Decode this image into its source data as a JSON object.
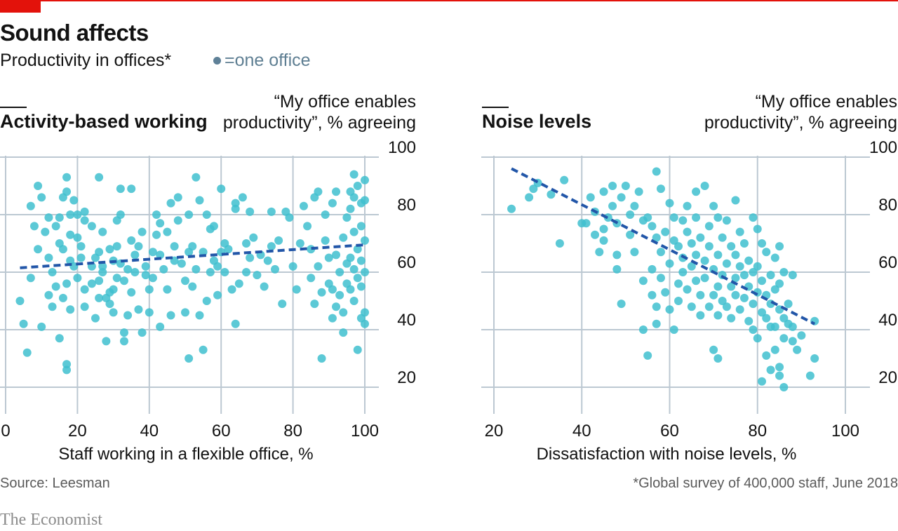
{
  "header": {
    "title": "Sound affects",
    "subtitle": "Productivity in offices*",
    "legend_label": "=one office"
  },
  "footer": {
    "source": "Source: Leesman",
    "footnote": "*Global survey of 400,000 staff, June 2018",
    "brand": "The Economist"
  },
  "colors": {
    "accent_red": "#e3120b",
    "dot": "#3fbfcf",
    "trend": "#2256a8",
    "grid": "#bcc8d2"
  },
  "chart_data": [
    {
      "type": "scatter",
      "title": "Activity-based working",
      "ylabel": "“My office enables productivity”, % agreeing",
      "xlabel": "Staff working in a flexible office, %",
      "xlim": [
        0,
        100
      ],
      "ylim": [
        20,
        100
      ],
      "xticks": [
        0,
        20,
        40,
        60,
        80,
        100
      ],
      "yticks": [
        20,
        40,
        60,
        80,
        100
      ],
      "grid": true,
      "trend": [
        [
          4,
          61.5
        ],
        [
          100,
          69.5
        ]
      ],
      "points": [
        [
          4,
          50
        ],
        [
          5,
          42
        ],
        [
          6,
          32
        ],
        [
          7,
          58
        ],
        [
          7,
          83
        ],
        [
          8,
          76
        ],
        [
          9,
          90
        ],
        [
          9,
          68
        ],
        [
          10,
          86
        ],
        [
          10,
          41
        ],
        [
          11,
          74
        ],
        [
          12,
          79
        ],
        [
          12,
          65
        ],
        [
          12,
          52
        ],
        [
          13,
          48
        ],
        [
          13,
          60
        ],
        [
          14,
          76
        ],
        [
          14,
          55
        ],
        [
          15,
          37
        ],
        [
          15,
          79
        ],
        [
          15,
          70
        ],
        [
          16,
          68
        ],
        [
          16,
          86
        ],
        [
          16,
          51
        ],
        [
          17,
          56
        ],
        [
          17,
          93
        ],
        [
          17,
          88
        ],
        [
          17,
          28
        ],
        [
          17,
          26
        ],
        [
          18,
          73
        ],
        [
          18,
          64
        ],
        [
          18,
          80
        ],
        [
          18,
          47
        ],
        [
          19,
          85
        ],
        [
          19,
          62
        ],
        [
          20,
          80
        ],
        [
          20,
          72
        ],
        [
          20,
          58
        ],
        [
          21,
          69
        ],
        [
          21,
          65
        ],
        [
          22,
          81
        ],
        [
          22,
          78
        ],
        [
          22,
          54
        ],
        [
          22,
          48
        ],
        [
          24,
          62
        ],
        [
          24,
          76
        ],
        [
          24,
          56
        ],
        [
          25,
          65
        ],
        [
          25,
          44
        ],
        [
          26,
          67
        ],
        [
          26,
          57
        ],
        [
          26,
          51
        ],
        [
          26,
          93
        ],
        [
          27,
          74
        ],
        [
          27,
          62
        ],
        [
          27,
          60
        ],
        [
          28,
          51
        ],
        [
          28,
          36
        ],
        [
          29,
          68
        ],
        [
          29,
          53
        ],
        [
          29,
          49
        ],
        [
          30,
          64
        ],
        [
          30,
          54
        ],
        [
          30,
          46
        ],
        [
          31,
          78
        ],
        [
          31,
          69
        ],
        [
          31,
          58
        ],
        [
          32,
          89
        ],
        [
          32,
          80
        ],
        [
          32,
          63
        ],
        [
          33,
          57
        ],
        [
          33,
          36
        ],
        [
          33,
          39
        ],
        [
          34,
          45
        ],
        [
          34,
          61
        ],
        [
          35,
          71
        ],
        [
          35,
          89
        ],
        [
          35,
          53
        ],
        [
          36,
          66
        ],
        [
          36,
          60
        ],
        [
          37,
          47
        ],
        [
          37,
          69
        ],
        [
          38,
          74
        ],
        [
          38,
          39
        ],
        [
          39,
          59
        ],
        [
          39,
          62
        ],
        [
          40,
          54
        ],
        [
          40,
          46
        ],
        [
          41,
          67
        ],
        [
          41,
          58
        ],
        [
          42,
          73
        ],
        [
          42,
          80
        ],
        [
          43,
          77
        ],
        [
          43,
          66
        ],
        [
          43,
          41
        ],
        [
          44,
          61
        ],
        [
          45,
          54
        ],
        [
          45,
          74
        ],
        [
          46,
          84
        ],
        [
          46,
          45
        ],
        [
          47,
          64
        ],
        [
          47,
          69
        ],
        [
          48,
          78
        ],
        [
          48,
          86
        ],
        [
          49,
          63
        ],
        [
          50,
          57
        ],
        [
          50,
          46
        ],
        [
          51,
          67
        ],
        [
          51,
          80
        ],
        [
          51,
          30
        ],
        [
          52,
          55
        ],
        [
          52,
          69
        ],
        [
          53,
          93
        ],
        [
          53,
          61
        ],
        [
          54,
          45
        ],
        [
          54,
          85
        ],
        [
          55,
          67
        ],
        [
          55,
          33
        ],
        [
          56,
          50
        ],
        [
          56,
          80
        ],
        [
          57,
          60
        ],
        [
          57,
          75
        ],
        [
          58,
          76
        ],
        [
          58,
          64
        ],
        [
          59,
          52
        ],
        [
          59,
          62
        ],
        [
          60,
          67
        ],
        [
          60,
          89
        ],
        [
          61,
          60
        ],
        [
          61,
          70
        ],
        [
          62,
          68
        ],
        [
          63,
          54
        ],
        [
          64,
          82
        ],
        [
          64,
          84
        ],
        [
          64,
          42
        ],
        [
          65,
          56
        ],
        [
          66,
          86
        ],
        [
          67,
          60
        ],
        [
          67,
          70
        ],
        [
          68,
          81
        ],
        [
          68,
          65
        ],
        [
          69,
          72
        ],
        [
          70,
          59
        ],
        [
          71,
          66
        ],
        [
          72,
          55
        ],
        [
          73,
          64
        ],
        [
          74,
          81
        ],
        [
          74,
          69
        ],
        [
          75,
          61
        ],
        [
          76,
          71
        ],
        [
          77,
          49
        ],
        [
          78,
          81
        ],
        [
          79,
          79
        ],
        [
          80,
          62
        ],
        [
          81,
          54
        ],
        [
          82,
          70
        ],
        [
          83,
          83
        ],
        [
          84,
          76
        ],
        [
          85,
          58
        ],
        [
          85,
          68
        ],
        [
          86,
          49
        ],
        [
          86,
          86
        ],
        [
          87,
          88
        ],
        [
          87,
          62
        ],
        [
          88,
          30
        ],
        [
          88,
          53
        ],
        [
          89,
          80
        ],
        [
          89,
          71
        ],
        [
          90,
          56
        ],
        [
          90,
          65
        ],
        [
          91,
          84
        ],
        [
          91,
          44
        ],
        [
          91,
          54
        ],
        [
          92,
          48
        ],
        [
          92,
          88
        ],
        [
          92,
          66
        ],
        [
          93,
          60
        ],
        [
          93,
          52
        ],
        [
          94,
          72
        ],
        [
          94,
          46
        ],
        [
          94,
          39
        ],
        [
          95,
          63
        ],
        [
          95,
          56
        ],
        [
          95,
          79
        ],
        [
          96,
          82
        ],
        [
          96,
          88
        ],
        [
          96,
          54
        ],
        [
          96,
          65
        ],
        [
          97,
          74
        ],
        [
          97,
          94
        ],
        [
          97,
          86
        ],
        [
          97,
          61
        ],
        [
          97,
          50
        ],
        [
          98,
          90
        ],
        [
          98,
          68
        ],
        [
          98,
          58
        ],
        [
          98,
          33
        ],
        [
          99,
          84
        ],
        [
          99,
          76
        ],
        [
          99,
          64
        ],
        [
          99,
          55
        ],
        [
          99,
          44
        ],
        [
          100,
          85
        ],
        [
          100,
          71
        ],
        [
          100,
          60
        ],
        [
          100,
          42
        ],
        [
          100,
          92
        ],
        [
          100,
          46
        ]
      ]
    },
    {
      "type": "scatter",
      "title": "Noise levels",
      "ylabel": "“My office enables productivity”, % agreeing",
      "xlabel": "Dissatisfaction with noise levels, %",
      "xlim": [
        20,
        100
      ],
      "ylim": [
        20,
        100
      ],
      "xticks": [
        20,
        40,
        60,
        80,
        100
      ],
      "yticks": [
        20,
        40,
        60,
        80,
        100
      ],
      "grid": true,
      "trend": [
        [
          24,
          96
        ],
        [
          93,
          42
        ]
      ],
      "points": [
        [
          24,
          82
        ],
        [
          28,
          86
        ],
        [
          29,
          89
        ],
        [
          30,
          91
        ],
        [
          33,
          87
        ],
        [
          35,
          70
        ],
        [
          36,
          92
        ],
        [
          40,
          77
        ],
        [
          41,
          77
        ],
        [
          42,
          86
        ],
        [
          43,
          73
        ],
        [
          43,
          81
        ],
        [
          44,
          67
        ],
        [
          45,
          88
        ],
        [
          45,
          75
        ],
        [
          45,
          71
        ],
        [
          46,
          79
        ],
        [
          47,
          83
        ],
        [
          47,
          90
        ],
        [
          48,
          66
        ],
        [
          48,
          61
        ],
        [
          48,
          77
        ],
        [
          49,
          86
        ],
        [
          49,
          49
        ],
        [
          50,
          90
        ],
        [
          51,
          73
        ],
        [
          51,
          80
        ],
        [
          52,
          67
        ],
        [
          52,
          83
        ],
        [
          53,
          88
        ],
        [
          54,
          78
        ],
        [
          54,
          57
        ],
        [
          54,
          40
        ],
        [
          55,
          79
        ],
        [
          55,
          31
        ],
        [
          56,
          76
        ],
        [
          56,
          61
        ],
        [
          56,
          52
        ],
        [
          57,
          95
        ],
        [
          57,
          72
        ],
        [
          57,
          48
        ],
        [
          57,
          42
        ],
        [
          58,
          67
        ],
        [
          58,
          58
        ],
        [
          58,
          89
        ],
        [
          59,
          74
        ],
        [
          59,
          53
        ],
        [
          60,
          84
        ],
        [
          60,
          63
        ],
        [
          60,
          47
        ],
        [
          61,
          79
        ],
        [
          61,
          71
        ],
        [
          61,
          40
        ],
        [
          62,
          69
        ],
        [
          62,
          56
        ],
        [
          62,
          50
        ],
        [
          63,
          78
        ],
        [
          63,
          65
        ],
        [
          63,
          60
        ],
        [
          64,
          74
        ],
        [
          64,
          83
        ],
        [
          64,
          54
        ],
        [
          65,
          70
        ],
        [
          65,
          62
        ],
        [
          65,
          48
        ],
        [
          66,
          79
        ],
        [
          66,
          66
        ],
        [
          66,
          88
        ],
        [
          66,
          57
        ],
        [
          67,
          72
        ],
        [
          67,
          52
        ],
        [
          67,
          45
        ],
        [
          68,
          90
        ],
        [
          68,
          64
        ],
        [
          68,
          58
        ],
        [
          69,
          76
        ],
        [
          69,
          69
        ],
        [
          69,
          48
        ],
        [
          70,
          83
        ],
        [
          70,
          61
        ],
        [
          70,
          52
        ],
        [
          70,
          33
        ],
        [
          71,
          79
        ],
        [
          71,
          66
        ],
        [
          71,
          55
        ],
        [
          71,
          45
        ],
        [
          71,
          30
        ],
        [
          72,
          72
        ],
        [
          72,
          59
        ],
        [
          72,
          50
        ],
        [
          73,
          78
        ],
        [
          73,
          63
        ],
        [
          73,
          48
        ],
        [
          74,
          69
        ],
        [
          74,
          55
        ],
        [
          74,
          44
        ],
        [
          75,
          85
        ],
        [
          75,
          66
        ],
        [
          75,
          58
        ],
        [
          75,
          52
        ],
        [
          76,
          74
        ],
        [
          76,
          62
        ],
        [
          76,
          47
        ],
        [
          77,
          70
        ],
        [
          77,
          59
        ],
        [
          77,
          51
        ],
        [
          78,
          64
        ],
        [
          78,
          55
        ],
        [
          78,
          43
        ],
        [
          79,
          79
        ],
        [
          79,
          60
        ],
        [
          79,
          49
        ],
        [
          79,
          40
        ],
        [
          80,
          75
        ],
        [
          80,
          62
        ],
        [
          80,
          53
        ],
        [
          80,
          37
        ],
        [
          81,
          70
        ],
        [
          81,
          57
        ],
        [
          81,
          46
        ],
        [
          81,
          22
        ],
        [
          82,
          67
        ],
        [
          82,
          52
        ],
        [
          82,
          44
        ],
        [
          82,
          31
        ],
        [
          83,
          59
        ],
        [
          83,
          49
        ],
        [
          83,
          41
        ],
        [
          83,
          26
        ],
        [
          84,
          65
        ],
        [
          84,
          54
        ],
        [
          84,
          41
        ],
        [
          84,
          33
        ],
        [
          85,
          56
        ],
        [
          85,
          47
        ],
        [
          85,
          69
        ],
        [
          85,
          27
        ],
        [
          85,
          24
        ],
        [
          86,
          60
        ],
        [
          86,
          44
        ],
        [
          86,
          37
        ],
        [
          86,
          20
        ],
        [
          87,
          49
        ],
        [
          87,
          42
        ],
        [
          88,
          59
        ],
        [
          88,
          36
        ],
        [
          88,
          41
        ],
        [
          89,
          33
        ],
        [
          90,
          38
        ],
        [
          92,
          24
        ],
        [
          93,
          43
        ],
        [
          93,
          30
        ]
      ]
    }
  ]
}
